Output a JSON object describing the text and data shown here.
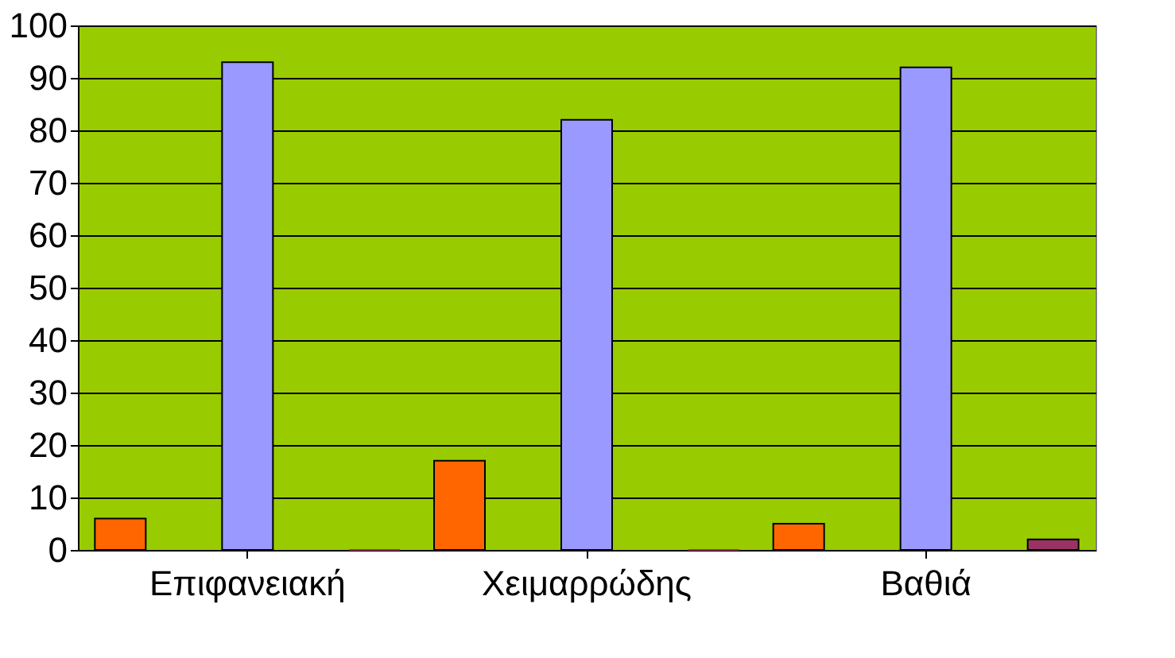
{
  "chart_data": {
    "type": "bar",
    "categories": [
      "Επιφανειακή",
      "Χειμαρρώδης",
      "Βαθιά"
    ],
    "series": [
      {
        "color": "#ff6600",
        "values": [
          6,
          17,
          5
        ]
      },
      {
        "color": "#9999ff",
        "values": [
          93,
          82,
          92
        ]
      },
      {
        "color": "#993366",
        "values": [
          0,
          0,
          2
        ]
      }
    ],
    "ylim": [
      0,
      100
    ],
    "yticks": [
      0,
      10,
      20,
      30,
      40,
      50,
      60,
      70,
      80,
      90,
      100
    ],
    "grid": "y",
    "legend": false
  }
}
